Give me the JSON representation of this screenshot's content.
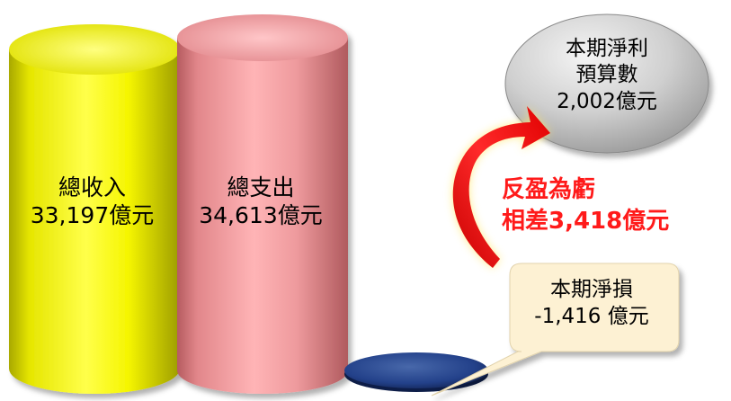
{
  "income": {
    "title": "總收入",
    "amount": "33,197億元"
  },
  "expense": {
    "title": "總支出",
    "amount": "34,613億元"
  },
  "budget_net_profit": {
    "line1": "本期淨利",
    "line2": "預算數",
    "amount": "2,002億元"
  },
  "swing": {
    "line1": "反盈為虧",
    "line2": "相差3,418億元"
  },
  "actual_net_loss": {
    "title": "本期淨損",
    "amount": "-1,416 億元"
  },
  "colors": {
    "income": "#f2f20a",
    "expense": "#e88f92",
    "loss_disk": "#1f3a7a",
    "budget_bubble": "#c8c8c8",
    "callout": "#fdf1d3",
    "arrow": "#ff2020",
    "swing_text": "#ff1a1a"
  }
}
